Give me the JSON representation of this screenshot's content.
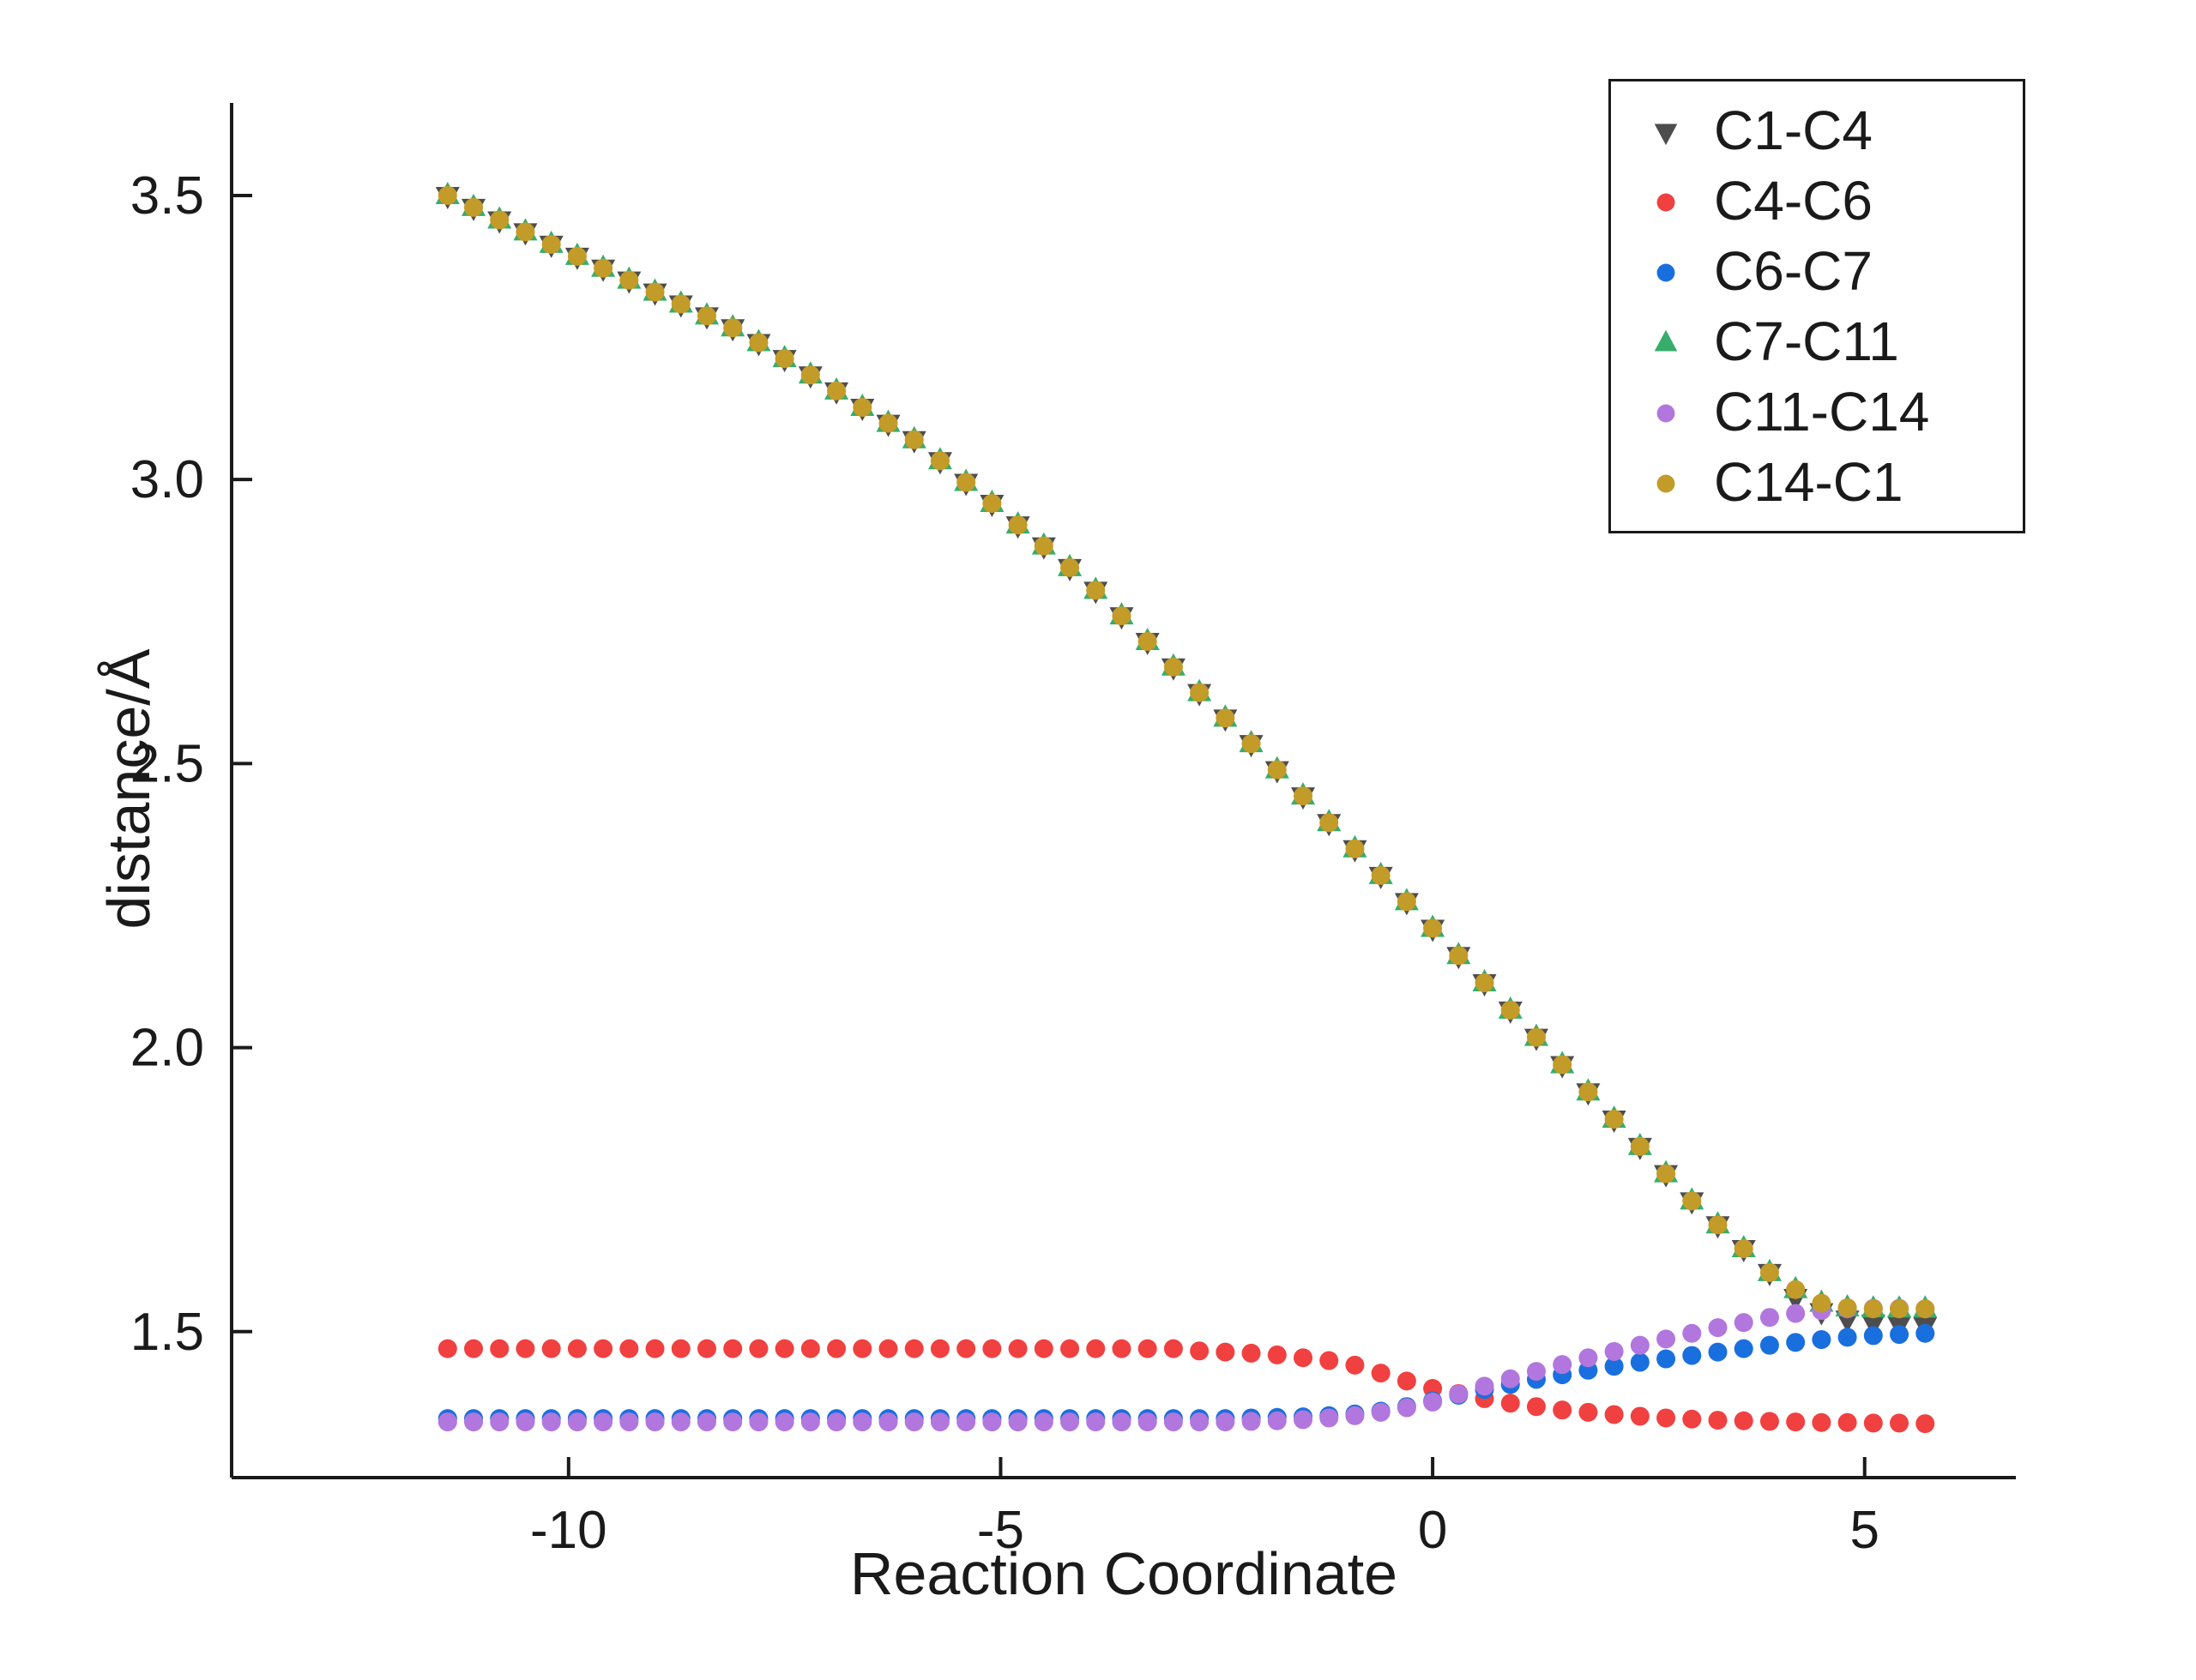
{
  "page": {
    "background": "#ffffff"
  },
  "chart_data": {
    "type": "scatter",
    "title": "",
    "xlabel": "Reaction Coordinate",
    "ylabel": "distance/Å",
    "xlim": [
      -13.9,
      6.75
    ],
    "ylim": [
      1.243,
      3.663
    ],
    "xticks": [
      -10,
      -5,
      0,
      5
    ],
    "yticks": [
      1.5,
      2.0,
      2.5,
      3.0,
      3.5
    ],
    "grid": false,
    "legend_position": "top-right",
    "x": [
      -11.4,
      -11.1,
      -10.8,
      -10.5,
      -10.2,
      -9.9,
      -9.6,
      -9.3,
      -9.0,
      -8.7,
      -8.4,
      -8.1,
      -7.8,
      -7.5,
      -7.2,
      -6.9,
      -6.6,
      -6.3,
      -6.0,
      -5.7,
      -5.4,
      -5.1,
      -4.8,
      -4.5,
      -4.2,
      -3.9,
      -3.6,
      -3.3,
      -3.0,
      -2.7,
      -2.4,
      -2.1,
      -1.8,
      -1.5,
      -1.2,
      -0.9,
      -0.6,
      -0.3,
      0.0,
      0.3,
      0.6,
      0.9,
      1.2,
      1.5,
      1.8,
      2.1,
      2.4,
      2.7,
      3.0,
      3.3,
      3.6,
      3.9,
      4.2,
      4.5,
      4.8,
      5.1,
      5.4,
      5.7
    ],
    "series": [
      {
        "name": "C1-C4",
        "marker": "triangle-down",
        "color": "#4D4D4D",
        "y": [
          3.5,
          3.479,
          3.457,
          3.436,
          3.414,
          3.393,
          3.372,
          3.351,
          3.33,
          3.309,
          3.288,
          3.267,
          3.241,
          3.213,
          3.184,
          3.156,
          3.127,
          3.099,
          3.07,
          3.033,
          2.995,
          2.958,
          2.92,
          2.883,
          2.845,
          2.805,
          2.76,
          2.715,
          2.67,
          2.625,
          2.58,
          2.535,
          2.489,
          2.443,
          2.396,
          2.35,
          2.303,
          2.257,
          2.21,
          2.162,
          2.114,
          2.066,
          2.018,
          1.97,
          1.922,
          1.874,
          1.826,
          1.778,
          1.73,
          1.688,
          1.646,
          1.604,
          1.56,
          1.535,
          1.522,
          1.515,
          1.512,
          1.51
        ]
      },
      {
        "name": "C4-C6",
        "marker": "circle",
        "color": "#F14040",
        "y": [
          1.47,
          1.47,
          1.47,
          1.47,
          1.47,
          1.47,
          1.47,
          1.47,
          1.47,
          1.47,
          1.47,
          1.47,
          1.47,
          1.47,
          1.47,
          1.47,
          1.47,
          1.47,
          1.47,
          1.47,
          1.47,
          1.47,
          1.47,
          1.47,
          1.47,
          1.47,
          1.47,
          1.47,
          1.47,
          1.466,
          1.464,
          1.462,
          1.459,
          1.454,
          1.449,
          1.441,
          1.427,
          1.413,
          1.4,
          1.391,
          1.382,
          1.374,
          1.368,
          1.362,
          1.358,
          1.354,
          1.351,
          1.348,
          1.346,
          1.344,
          1.343,
          1.342,
          1.341,
          1.34,
          1.34,
          1.339,
          1.339,
          1.338
        ]
      },
      {
        "name": "C6-C7",
        "marker": "circle",
        "color": "#1A6FDF",
        "y": [
          1.347,
          1.347,
          1.347,
          1.347,
          1.347,
          1.347,
          1.347,
          1.347,
          1.347,
          1.347,
          1.347,
          1.347,
          1.347,
          1.347,
          1.347,
          1.347,
          1.347,
          1.347,
          1.347,
          1.347,
          1.347,
          1.347,
          1.347,
          1.347,
          1.347,
          1.347,
          1.347,
          1.347,
          1.347,
          1.347,
          1.347,
          1.348,
          1.349,
          1.35,
          1.352,
          1.355,
          1.36,
          1.368,
          1.378,
          1.388,
          1.398,
          1.407,
          1.416,
          1.424,
          1.432,
          1.439,
          1.446,
          1.452,
          1.458,
          1.464,
          1.47,
          1.476,
          1.481,
          1.486,
          1.49,
          1.493,
          1.495,
          1.497
        ]
      },
      {
        "name": "C7-C11",
        "marker": "triangle-up",
        "color": "#37AD6B",
        "y": [
          3.5,
          3.479,
          3.457,
          3.436,
          3.414,
          3.393,
          3.372,
          3.351,
          3.33,
          3.309,
          3.288,
          3.267,
          3.241,
          3.213,
          3.184,
          3.156,
          3.127,
          3.099,
          3.07,
          3.033,
          2.995,
          2.958,
          2.92,
          2.883,
          2.845,
          2.805,
          2.76,
          2.715,
          2.67,
          2.625,
          2.58,
          2.535,
          2.489,
          2.443,
          2.396,
          2.35,
          2.303,
          2.257,
          2.21,
          2.162,
          2.114,
          2.066,
          2.018,
          1.97,
          1.922,
          1.874,
          1.826,
          1.778,
          1.73,
          1.688,
          1.646,
          1.604,
          1.574,
          1.55,
          1.542,
          1.54,
          1.54,
          1.54
        ]
      },
      {
        "name": "C11-C14",
        "marker": "circle",
        "color": "#B177DE",
        "y": [
          1.341,
          1.341,
          1.341,
          1.341,
          1.341,
          1.341,
          1.341,
          1.341,
          1.341,
          1.341,
          1.341,
          1.341,
          1.341,
          1.341,
          1.341,
          1.341,
          1.341,
          1.341,
          1.341,
          1.341,
          1.341,
          1.341,
          1.341,
          1.341,
          1.341,
          1.341,
          1.341,
          1.341,
          1.341,
          1.341,
          1.341,
          1.342,
          1.343,
          1.345,
          1.348,
          1.352,
          1.358,
          1.366,
          1.376,
          1.39,
          1.404,
          1.417,
          1.43,
          1.442,
          1.454,
          1.465,
          1.476,
          1.487,
          1.497,
          1.507,
          1.516,
          1.525,
          1.532,
          1.537,
          1.54,
          1.541,
          1.541,
          1.54
        ]
      },
      {
        "name": "C14-C1",
        "marker": "circle",
        "color": "#C29B28",
        "y": [
          3.5,
          3.479,
          3.457,
          3.436,
          3.414,
          3.393,
          3.372,
          3.351,
          3.33,
          3.309,
          3.288,
          3.267,
          3.241,
          3.213,
          3.184,
          3.156,
          3.127,
          3.099,
          3.07,
          3.033,
          2.995,
          2.958,
          2.92,
          2.883,
          2.845,
          2.805,
          2.76,
          2.715,
          2.67,
          2.625,
          2.58,
          2.535,
          2.489,
          2.443,
          2.396,
          2.35,
          2.303,
          2.257,
          2.21,
          2.162,
          2.114,
          2.066,
          2.018,
          1.97,
          1.922,
          1.874,
          1.826,
          1.778,
          1.73,
          1.688,
          1.646,
          1.604,
          1.574,
          1.55,
          1.542,
          1.54,
          1.54,
          1.54
        ]
      }
    ]
  }
}
